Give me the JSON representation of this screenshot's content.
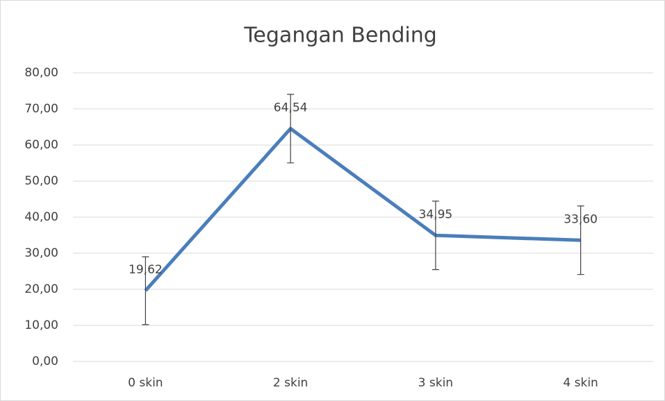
{
  "chart_data": {
    "type": "line",
    "title": "Tegangan Bending",
    "categories": [
      "0 skin",
      "2 skin",
      "3 skin",
      "4 skin"
    ],
    "values": [
      19.62,
      64.54,
      34.95,
      33.6
    ],
    "value_labels": [
      "19,62",
      "64,54",
      "34,95",
      "33,60"
    ],
    "errors": [
      9.4,
      9.5,
      9.5,
      9.5
    ],
    "color": "#4a7ebb",
    "ylim": [
      0,
      80
    ],
    "yticks": [
      {
        "value": 0,
        "label": "0,00"
      },
      {
        "value": 10,
        "label": "10,00"
      },
      {
        "value": 20,
        "label": "20,00"
      },
      {
        "value": 30,
        "label": "30,00"
      },
      {
        "value": 40,
        "label": "40,00"
      },
      {
        "value": 50,
        "label": "50,00"
      },
      {
        "value": 60,
        "label": "60,00"
      },
      {
        "value": 70,
        "label": "70,00"
      },
      {
        "value": 80,
        "label": "80,00"
      }
    ],
    "grid": true
  }
}
